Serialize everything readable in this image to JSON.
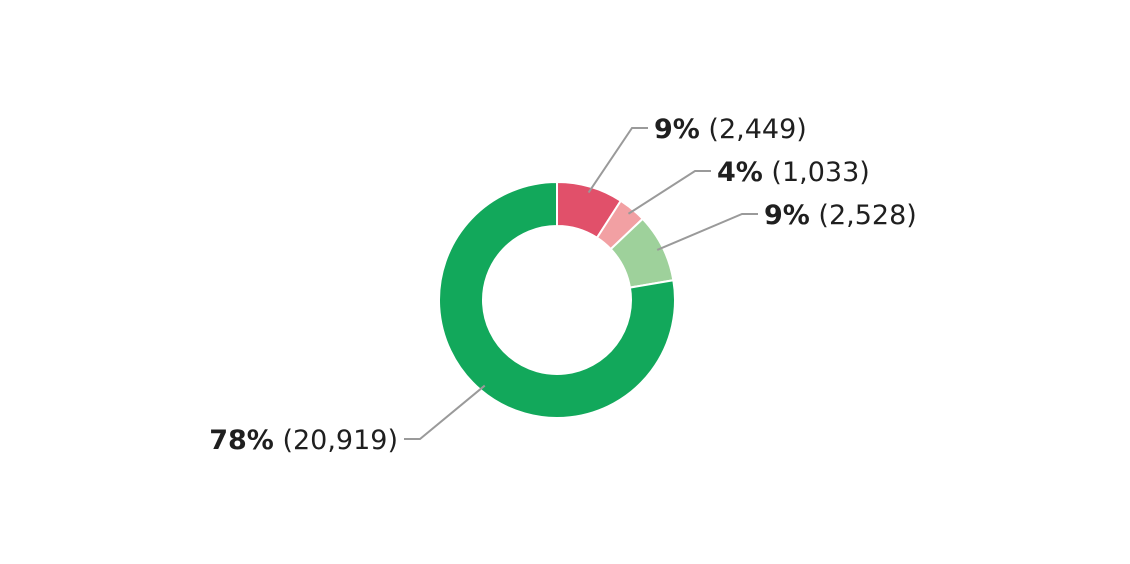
{
  "chart_data": {
    "type": "pie",
    "donut": true,
    "title": "",
    "legend": "none",
    "slices": [
      {
        "percent_label": "9%",
        "count_label": "(2,449)",
        "value": 2449,
        "color": "#e1506a",
        "label_side": "right"
      },
      {
        "percent_label": "4%",
        "count_label": "(1,033)",
        "value": 1033,
        "color": "#f2a0a3",
        "label_side": "right"
      },
      {
        "percent_label": "9%",
        "count_label": "(2,528)",
        "value": 2528,
        "color": "#9ed19b",
        "label_side": "right"
      },
      {
        "percent_label": "78%",
        "count_label": "(20,919)",
        "value": 20919,
        "color": "#12a85b",
        "label_side": "left"
      }
    ]
  }
}
